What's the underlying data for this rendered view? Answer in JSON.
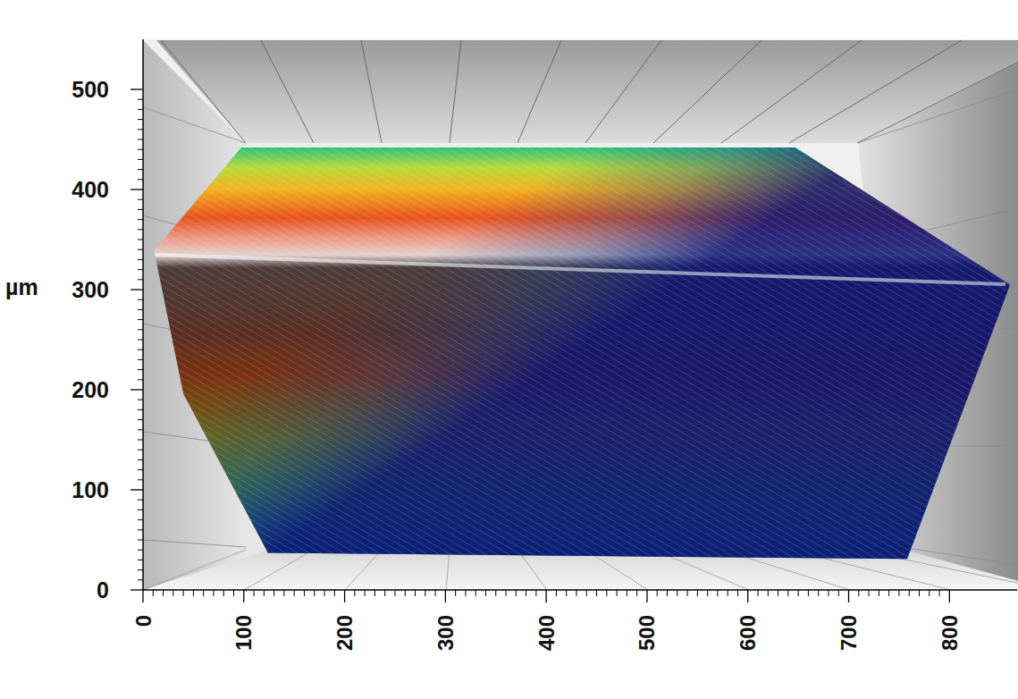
{
  "chart_data": {
    "type": "surface",
    "y_label": "µm",
    "xlim": [
      0,
      860
    ],
    "ylim": [
      0,
      550
    ],
    "xticks": [
      0,
      100,
      200,
      300,
      400,
      500,
      600,
      700,
      800
    ],
    "yticks": [
      0,
      100,
      200,
      300,
      400,
      500
    ],
    "surface": {
      "x": [
        97.5,
        647,
        860,
        758,
        124,
        40,
        11
      ],
      "y": [
        442,
        442,
        305,
        31,
        37,
        196,
        339
      ]
    }
  }
}
